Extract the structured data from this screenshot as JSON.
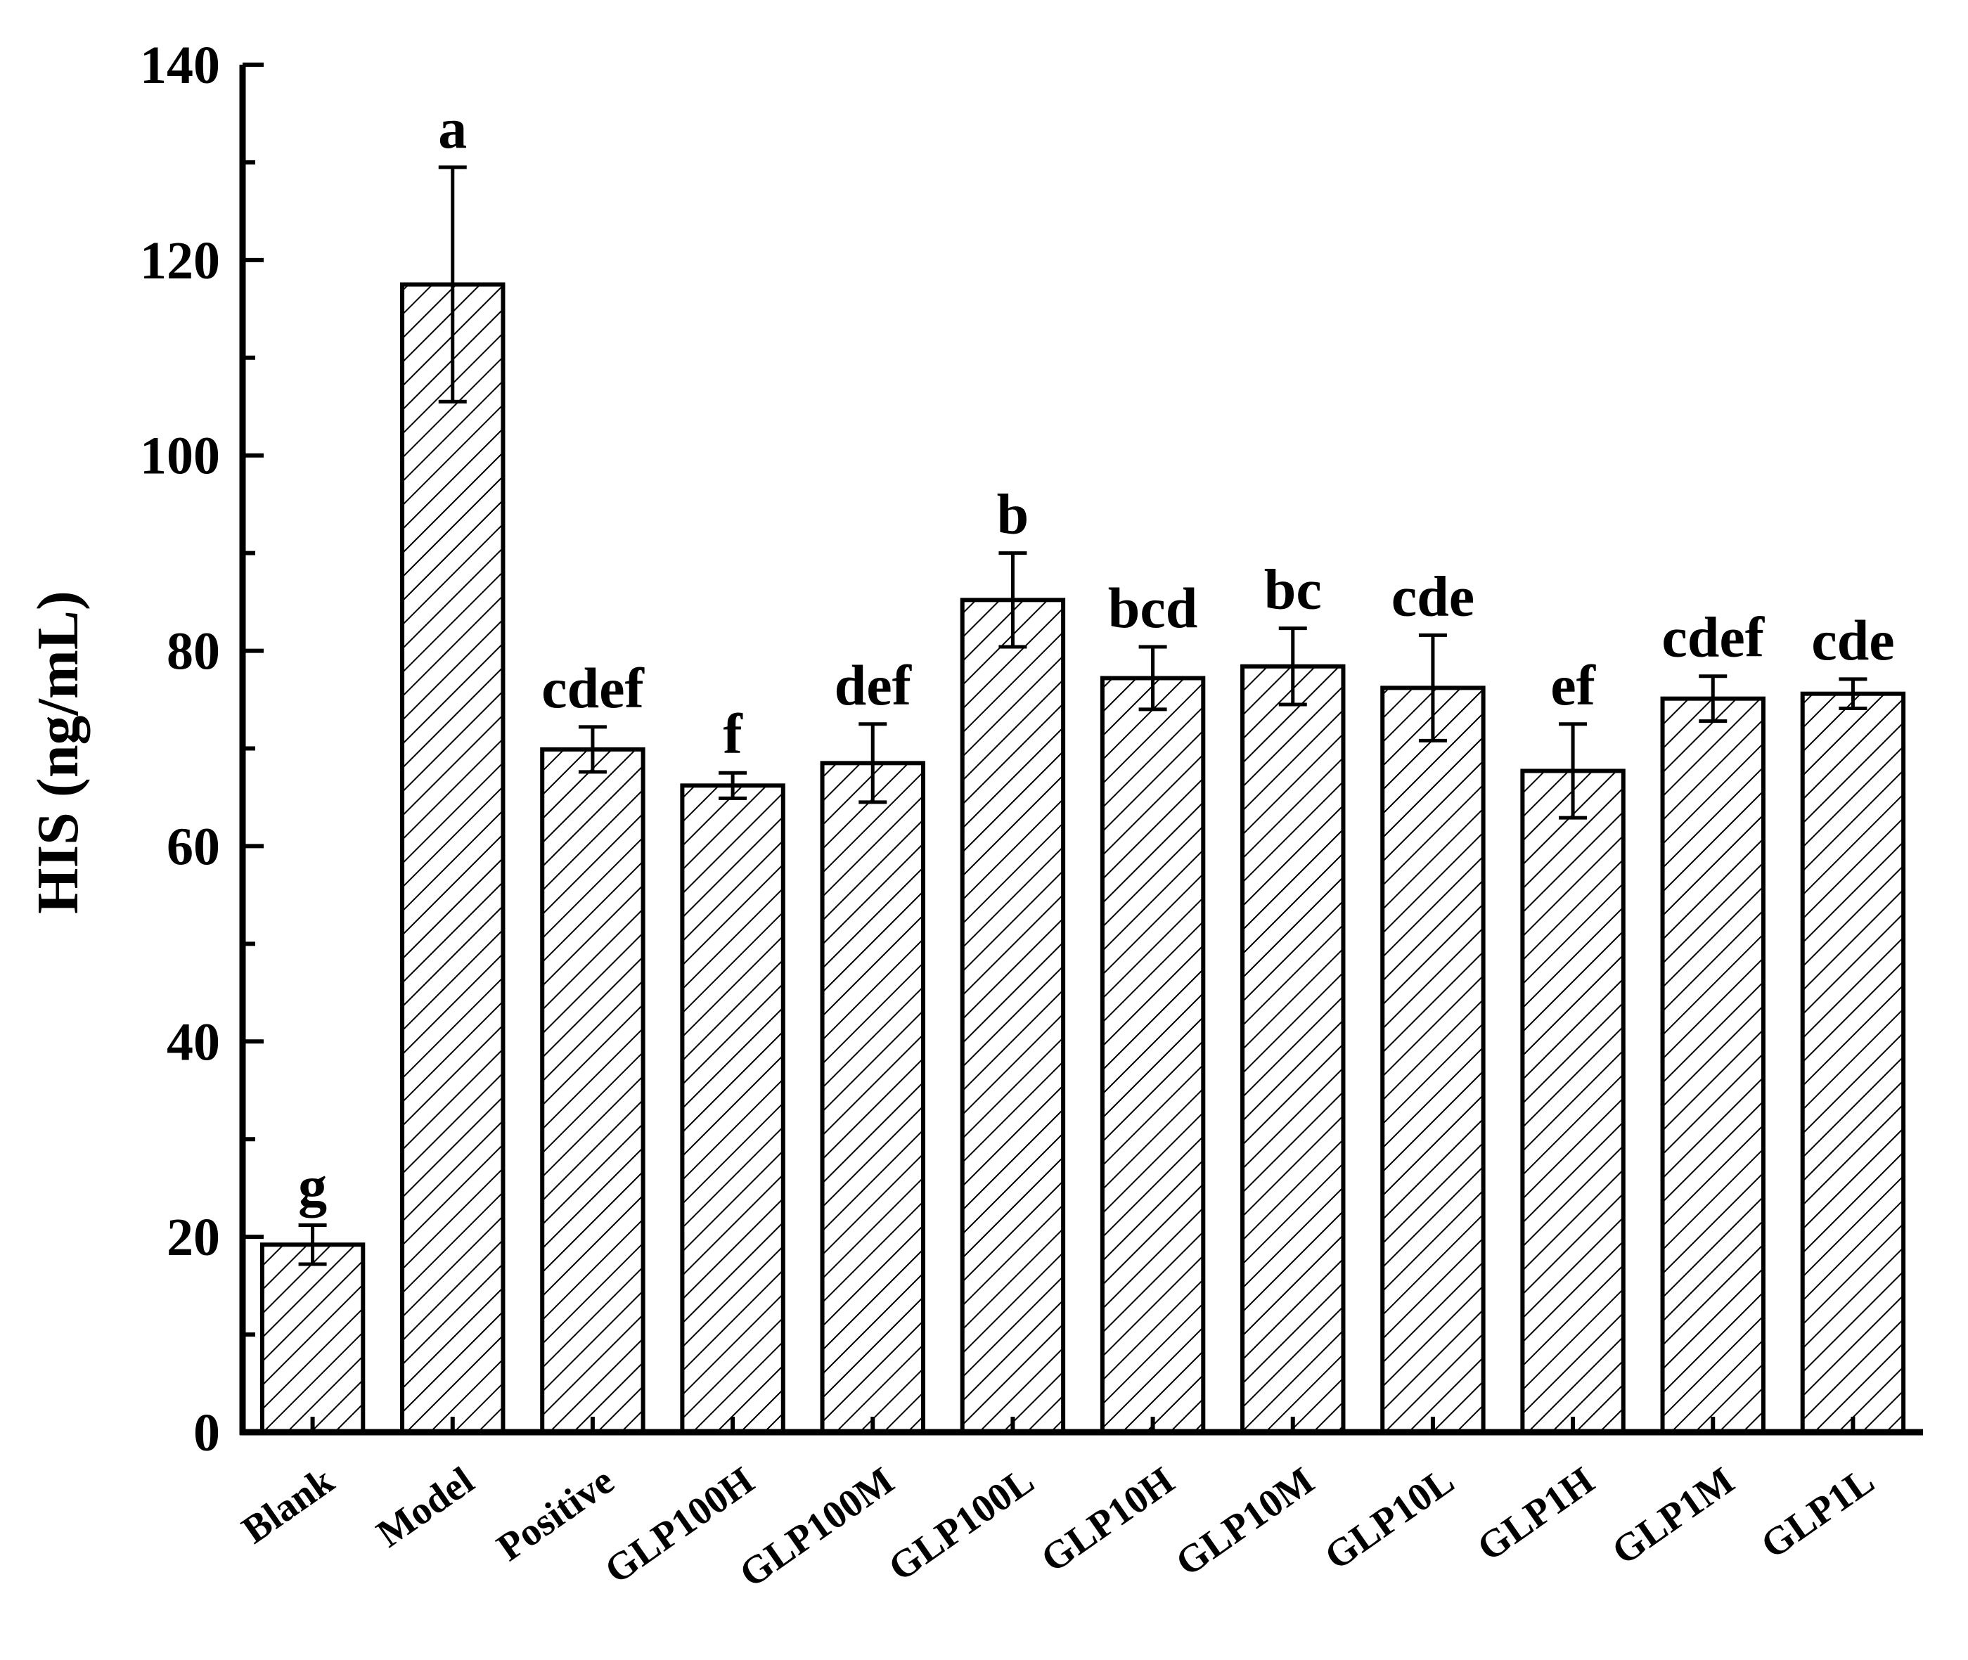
{
  "chart_data": {
    "type": "bar",
    "title": "",
    "xlabel": "",
    "ylabel": "HIS (ng/mL)",
    "ylim": [
      0,
      140
    ],
    "yticks": [
      0,
      20,
      40,
      60,
      80,
      100,
      120,
      140
    ],
    "grid": false,
    "legend": "none",
    "bar_style": "white fill with diagonal hatch, black outline",
    "categories": [
      "Blank",
      "Model",
      "Positive",
      "GLP100H",
      "GLP100M",
      "GLP100L",
      "GLP10H",
      "GLP10M",
      "GLP10L",
      "GLP1H",
      "GLP1M",
      "GLP1L"
    ],
    "values": [
      19.2,
      117.5,
      69.9,
      66.2,
      68.5,
      85.2,
      77.2,
      78.4,
      76.2,
      67.7,
      75.1,
      75.6
    ],
    "errors": [
      2.0,
      12.0,
      2.3,
      1.3,
      4.0,
      4.8,
      3.2,
      3.9,
      5.4,
      4.8,
      2.3,
      1.5
    ],
    "significance": [
      "g",
      "a",
      "cdef",
      "f",
      "def",
      "b",
      "bcd",
      "bc",
      "cde",
      "ef",
      "cdef",
      "cde"
    ]
  }
}
